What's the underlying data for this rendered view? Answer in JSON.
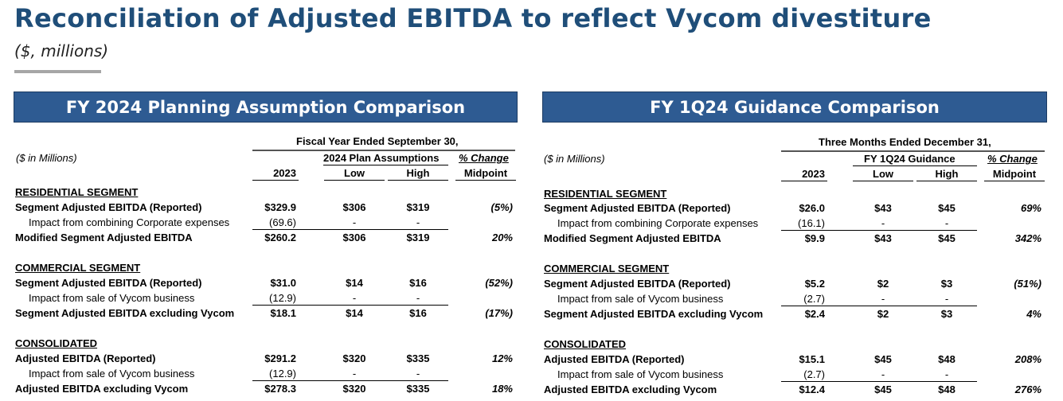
{
  "header": {
    "title": "Reconciliation of Adjusted EBITDA to reflect Vycom divestiture",
    "subtitle": "($, millions)"
  },
  "left": {
    "banner": "FY 2024 Planning Assumption Comparison",
    "period": "Fiscal Year Ended September 30,",
    "units": "($ in Millions)",
    "group": "2024 Plan Assumptions",
    "pct_top": "% Change",
    "col_2023": "2023",
    "col_low": "Low",
    "col_high": "High",
    "col_mid": "Midpoint",
    "residential": {
      "title": "RESIDENTIAL SEGMENT",
      "rows": [
        {
          "label": "Segment Adjusted EBITDA (Reported)",
          "v2023": "$329.9",
          "low": "$306",
          "high": "$319",
          "pct": "(5%)"
        },
        {
          "label": "Impact from combining Corporate expenses",
          "v2023": "(69.6)",
          "low": "-",
          "high": "-",
          "pct": ""
        },
        {
          "label": "Modified Segment Adjusted EBITDA",
          "v2023": "$260.2",
          "low": "$306",
          "high": "$319",
          "pct": "20%"
        }
      ]
    },
    "commercial": {
      "title": "COMMERCIAL SEGMENT",
      "rows": [
        {
          "label": "Segment Adjusted EBITDA (Reported)",
          "v2023": "$31.0",
          "low": "$14",
          "high": "$16",
          "pct": "(52%)"
        },
        {
          "label": "Impact from sale of Vycom business",
          "v2023": "(12.9)",
          "low": "-",
          "high": "-",
          "pct": ""
        },
        {
          "label": "Segment Adjusted EBITDA excluding Vycom",
          "v2023": "$18.1",
          "low": "$14",
          "high": "$16",
          "pct": "(17%)"
        }
      ]
    },
    "consolidated": {
      "title": "CONSOLIDATED",
      "rows": [
        {
          "label": "Adjusted EBITDA (Reported)",
          "v2023": "$291.2",
          "low": "$320",
          "high": "$335",
          "pct": "12%"
        },
        {
          "label": "Impact from sale of Vycom business",
          "v2023": "(12.9)",
          "low": "-",
          "high": "-",
          "pct": ""
        },
        {
          "label": "Adjusted EBITDA excluding Vycom",
          "v2023": "$278.3",
          "low": "$320",
          "high": "$335",
          "pct": "18%"
        }
      ]
    }
  },
  "right": {
    "banner": "FY 1Q24 Guidance Comparison",
    "period": "Three Months Ended December 31,",
    "units": "($ in Millions)",
    "group": "FY 1Q24 Guidance",
    "pct_top": "% Change",
    "col_2023": "2023",
    "col_low": "Low",
    "col_high": "High",
    "col_mid": "Midpoint",
    "residential": {
      "title": "RESIDENTIAL SEGMENT",
      "rows": [
        {
          "label": "Segment Adjusted EBITDA (Reported)",
          "v2023": "$26.0",
          "low": "$43",
          "high": "$45",
          "pct": "69%"
        },
        {
          "label": "Impact from combining Corporate expenses",
          "v2023": "(16.1)",
          "low": "-",
          "high": "-",
          "pct": ""
        },
        {
          "label": "Modified Segment Adjusted EBITDA",
          "v2023": "$9.9",
          "low": "$43",
          "high": "$45",
          "pct": "342%"
        }
      ]
    },
    "commercial": {
      "title": "COMMERCIAL SEGMENT",
      "rows": [
        {
          "label": "Segment Adjusted EBITDA (Reported)",
          "v2023": "$5.2",
          "low": "$2",
          "high": "$3",
          "pct": "(51%)"
        },
        {
          "label": "Impact from sale of Vycom business",
          "v2023": "(2.7)",
          "low": "-",
          "high": "-",
          "pct": ""
        },
        {
          "label": "Segment Adjusted EBITDA excluding Vycom",
          "v2023": "$2.4",
          "low": "$2",
          "high": "$3",
          "pct": "4%"
        }
      ]
    },
    "consolidated": {
      "title": "CONSOLIDATED",
      "rows": [
        {
          "label": "Adjusted EBITDA (Reported)",
          "v2023": "$15.1",
          "low": "$45",
          "high": "$48",
          "pct": "208%"
        },
        {
          "label": "Impact from sale of Vycom business",
          "v2023": "(2.7)",
          "low": "-",
          "high": "-",
          "pct": ""
        },
        {
          "label": "Adjusted EBITDA excluding Vycom",
          "v2023": "$12.4",
          "low": "$45",
          "high": "$48",
          "pct": "276%"
        }
      ]
    }
  }
}
